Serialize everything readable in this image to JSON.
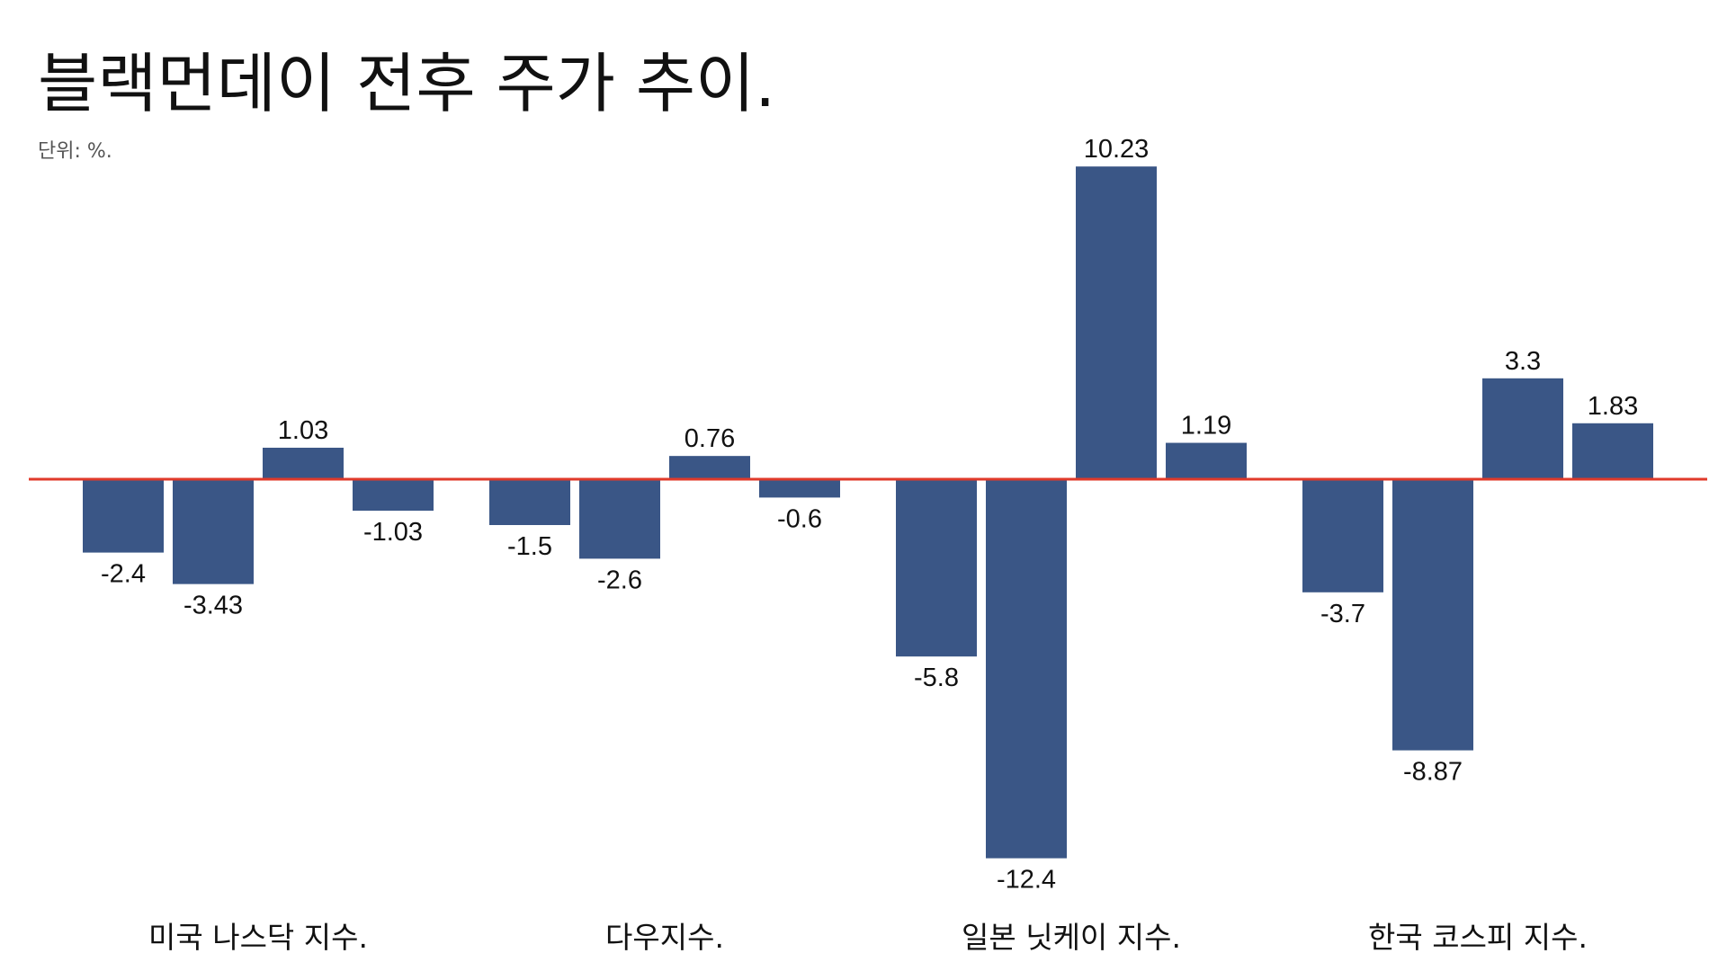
{
  "title": "블랙먼데이 전후 주가 추이.",
  "unit_label": "단위: %.",
  "colors": {
    "bar": "#3a5686",
    "zero_line": "#e03a2a",
    "text": "#111111",
    "unit_text": "#555555"
  },
  "chart_data": {
    "type": "bar",
    "title": "블랙먼데이 전후 주가 추이.",
    "subtitle": "단위: %.",
    "categories": [
      "미국 나스닥 지수.",
      "다우지수.",
      "일본 닛케이 지수.",
      "한국 코스피 지수."
    ],
    "groups": [
      {
        "category": "미국 나스닥 지수.",
        "values": [
          -2.4,
          -3.43,
          1.03,
          -1.03
        ],
        "labels": [
          "-2.4",
          "-3.43",
          "1.03",
          "-1.03"
        ]
      },
      {
        "category": "다우지수.",
        "values": [
          -1.5,
          -2.6,
          0.76,
          -0.6
        ],
        "labels": [
          "-1.5",
          "-2.6",
          "0.76",
          "-0.6"
        ]
      },
      {
        "category": "일본 닛케이 지수.",
        "values": [
          -5.8,
          -12.4,
          10.23,
          1.19
        ],
        "labels": [
          "-5.8",
          "-12.4",
          "10.23",
          "1.19"
        ]
      },
      {
        "category": "한국 코스피 지수.",
        "values": [
          -3.7,
          -8.87,
          3.3,
          1.83
        ],
        "labels": [
          "-3.7",
          "-8.87",
          "3.3",
          "1.83"
        ]
      }
    ],
    "xlabel": "",
    "ylabel": "",
    "ylim": [
      -12.4,
      10.23
    ],
    "grid": false,
    "legend": "none",
    "zero_line": true
  }
}
